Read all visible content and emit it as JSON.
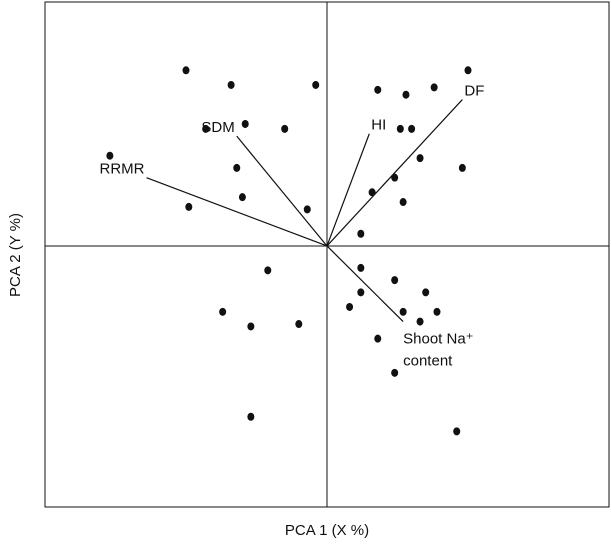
{
  "chart_data": {
    "type": "biplot",
    "x_label": "PCA 1 (X %)",
    "y_label": "PCA 2 (Y %)",
    "xlim": [
      -1,
      1
    ],
    "ylim": [
      -1.07,
      1
    ],
    "point_color": "#111111",
    "vector_color": "#111111",
    "x": [
      -0.5,
      -0.34,
      -0.04,
      0.18,
      0.28,
      0.38,
      0.5,
      -0.43,
      -0.29,
      -0.15,
      0.26,
      0.3,
      -0.77,
      -0.32,
      0.33,
      0.48,
      0.24,
      0.16,
      -0.3,
      -0.49,
      0.27,
      -0.07,
      0.12,
      -0.21,
      0.12,
      0.24,
      0.35,
      0.12,
      0.08,
      0.39,
      0.27,
      0.33,
      -0.37,
      -0.27,
      -0.1,
      0.18,
      0.24,
      -0.27,
      0.46
    ],
    "y": [
      0.72,
      0.66,
      0.66,
      0.64,
      0.62,
      0.65,
      0.72,
      0.48,
      0.5,
      0.48,
      0.48,
      0.48,
      0.37,
      0.32,
      0.36,
      0.32,
      0.28,
      0.22,
      0.2,
      0.16,
      0.18,
      0.15,
      0.05,
      -0.1,
      -0.09,
      -0.14,
      -0.19,
      -0.19,
      -0.25,
      -0.27,
      -0.27,
      -0.31,
      -0.27,
      -0.33,
      -0.32,
      -0.38,
      -0.52,
      -0.7,
      -0.76
    ],
    "loadings": [
      {
        "label": [
          "RRMR"
        ],
        "x": -0.64,
        "y": 0.28
      },
      {
        "label": [
          "SDM"
        ],
        "x": -0.32,
        "y": 0.45
      },
      {
        "label": [
          "HI"
        ],
        "x": 0.15,
        "y": 0.46
      },
      {
        "label": [
          "DF"
        ],
        "x": 0.48,
        "y": 0.6
      },
      {
        "label": [
          "Shoot Na⁺",
          "content"
        ],
        "x": 0.27,
        "y": -0.31
      }
    ]
  }
}
